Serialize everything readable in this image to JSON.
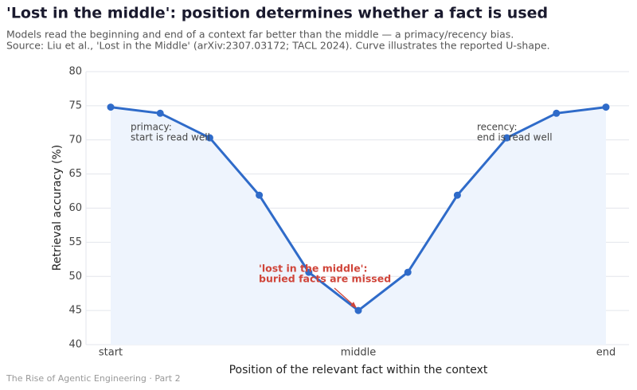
{
  "chart_data": {
    "type": "line",
    "title": "'Lost in the middle': position determines whether a fact is used",
    "subtitle": "Models read the beginning and end of a context far better than the middle — a primacy/recency bias.",
    "source": "Source: Liu et al., 'Lost in the Middle' (arXiv:2307.03172; TACL 2024). Curve illustrates the reported U-shape.",
    "x_label": "Position of the relevant fact within the context",
    "y_label": "Retrieval accuracy (%)",
    "categories": [
      "start",
      null,
      null,
      null,
      null,
      "middle",
      null,
      null,
      null,
      null,
      "end"
    ],
    "values": [
      74.8,
      73.9,
      70.3,
      61.9,
      50.6,
      45.0,
      50.6,
      61.9,
      70.3,
      73.9,
      74.8
    ],
    "color": "#2f6bc9",
    "fill_color": "#eef4fd",
    "ylim": [
      40,
      80
    ],
    "yticks": [
      40,
      45,
      50,
      55,
      60,
      65,
      70,
      75,
      80
    ],
    "grid": true,
    "annotations": [
      {
        "lines": [
          "primacy:",
          "start is read well"
        ]
      },
      {
        "lines": [
          "recency:",
          "end is read well"
        ]
      },
      {
        "lines": [
          "'lost in the middle':",
          "buried facts are missed"
        ],
        "color": "#d0453a"
      }
    ],
    "footer": "The Rise of Agentic Engineering · Part 2"
  }
}
